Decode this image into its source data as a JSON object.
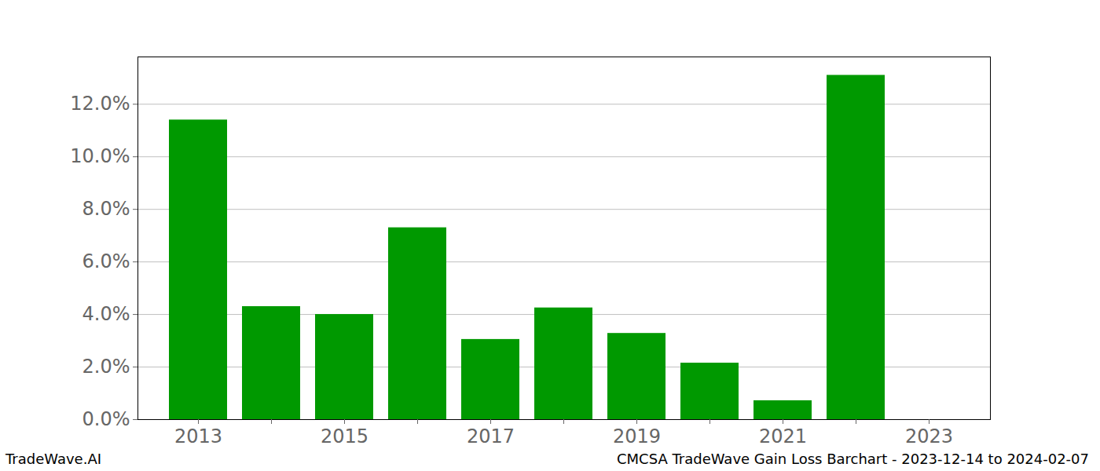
{
  "chart_data": {
    "type": "bar",
    "title": "CMCSA TradeWave Gain Loss Barchart - 2023-12-14 to 2024-02-07",
    "caption": "TradeWave.AI",
    "categories": [
      "2013",
      null,
      "2015",
      null,
      "2017",
      null,
      "2019",
      null,
      "2021",
      null,
      "2023"
    ],
    "values": [
      11.4,
      4.3,
      4.0,
      7.3,
      3.05,
      4.25,
      3.28,
      2.15,
      0.72,
      13.1,
      null
    ],
    "color": "#009900",
    "ylim": [
      0,
      13.8
    ],
    "yticks": [
      {
        "value": 0,
        "label": "0.0%"
      },
      {
        "value": 2,
        "label": "2.0%"
      },
      {
        "value": 4,
        "label": "4.0%"
      },
      {
        "value": 6,
        "label": "6.0%"
      },
      {
        "value": 8,
        "label": "8.0%"
      },
      {
        "value": 10,
        "label": "10.0%"
      },
      {
        "value": 12,
        "label": "12.0%"
      }
    ],
    "grid": true
  }
}
